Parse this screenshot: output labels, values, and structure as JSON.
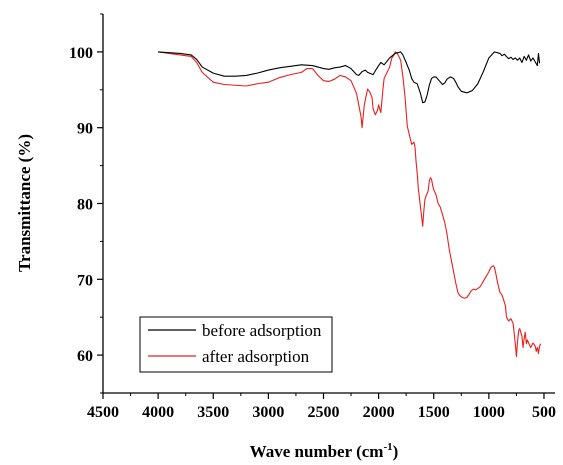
{
  "chart_data": {
    "type": "line",
    "xlabel": "Wave number (cm",
    "xlabel_sup": "-1",
    "xlabel_end": ")",
    "ylabel": "Transmittance (%)",
    "xlim": [
      4500,
      400
    ],
    "ylim": [
      55,
      105
    ],
    "x_ticks": [
      4500,
      4000,
      3500,
      3000,
      2500,
      2000,
      1500,
      1000,
      500
    ],
    "y_ticks": [
      60,
      70,
      80,
      90,
      100
    ],
    "legend_position": "bottom-left",
    "series": [
      {
        "name": "before adsorption",
        "color": "#000000",
        "x": [
          4000,
          3900,
          3800,
          3700,
          3650,
          3600,
          3500,
          3400,
          3300,
          3200,
          3100,
          3000,
          2900,
          2800,
          2700,
          2600,
          2500,
          2450,
          2400,
          2350,
          2300,
          2250,
          2200,
          2180,
          2150,
          2120,
          2100,
          2050,
          2030,
          2000,
          1980,
          1950,
          1900,
          1850,
          1800,
          1780,
          1750,
          1720,
          1700,
          1680,
          1650,
          1620,
          1600,
          1580,
          1560,
          1540,
          1520,
          1500,
          1480,
          1450,
          1420,
          1400,
          1380,
          1350,
          1320,
          1300,
          1280,
          1250,
          1200,
          1150,
          1100,
          1050,
          1000,
          950,
          900,
          880,
          860,
          840,
          820,
          800,
          780,
          760,
          740,
          720,
          700,
          680,
          660,
          640,
          620,
          600,
          580,
          560,
          550,
          540
        ],
        "values": [
          100,
          99.9,
          99.8,
          99.6,
          99.0,
          98.0,
          97.2,
          96.8,
          96.8,
          96.9,
          97.2,
          97.6,
          97.9,
          98.1,
          98.3,
          98.2,
          97.8,
          97.7,
          97.9,
          98.0,
          98.2,
          97.8,
          97.0,
          96.9,
          97.4,
          97.6,
          97.3,
          97.0,
          97.5,
          98.2,
          98.6,
          98.3,
          99.2,
          99.8,
          100,
          99.6,
          98.6,
          97.5,
          96.5,
          96.0,
          95.8,
          94.5,
          93.3,
          93.4,
          94.3,
          95.6,
          96.5,
          96.7,
          96.7,
          96.2,
          95.7,
          95.9,
          96.4,
          96.7,
          96.5,
          96.0,
          95.4,
          94.8,
          94.6,
          94.9,
          95.8,
          97.4,
          99.2,
          100,
          99.8,
          99.5,
          99.7,
          99.4,
          99.1,
          99.3,
          99.0,
          99.2,
          98.9,
          99.2,
          98.6,
          99.4,
          98.9,
          99.6,
          98.8,
          99.2,
          98.7,
          98.2,
          99.8,
          98.5
        ]
      },
      {
        "name": "after adsorption",
        "color": "#e8201e",
        "x": [
          4000,
          3900,
          3800,
          3700,
          3650,
          3600,
          3500,
          3400,
          3300,
          3200,
          3100,
          3000,
          2900,
          2800,
          2700,
          2650,
          2600,
          2550,
          2500,
          2450,
          2400,
          2350,
          2300,
          2250,
          2200,
          2180,
          2160,
          2150,
          2130,
          2100,
          2080,
          2060,
          2050,
          2030,
          2010,
          2000,
          1980,
          1960,
          1950,
          1920,
          1900,
          1880,
          1860,
          1850,
          1830,
          1800,
          1780,
          1760,
          1740,
          1720,
          1700,
          1680,
          1670,
          1660,
          1650,
          1640,
          1620,
          1600,
          1590,
          1580,
          1570,
          1560,
          1550,
          1540,
          1530,
          1520,
          1510,
          1500,
          1480,
          1460,
          1440,
          1420,
          1400,
          1380,
          1360,
          1340,
          1320,
          1300,
          1280,
          1260,
          1240,
          1220,
          1200,
          1180,
          1160,
          1140,
          1120,
          1100,
          1080,
          1060,
          1040,
          1020,
          1000,
          980,
          960,
          950,
          940,
          920,
          900,
          880,
          860,
          850,
          840,
          820,
          800,
          780,
          760,
          750,
          740,
          730,
          720,
          700,
          690,
          680,
          670,
          660,
          650,
          640,
          620,
          600,
          580,
          570,
          560,
          550,
          540,
          530
        ],
        "values": [
          100,
          99.8,
          99.6,
          99.4,
          98.6,
          97.3,
          96.0,
          95.7,
          95.6,
          95.5,
          95.8,
          96.0,
          96.6,
          97.0,
          97.3,
          97.8,
          97.8,
          96.9,
          96.2,
          96.1,
          96.4,
          96.9,
          96.7,
          96.2,
          94.5,
          93.0,
          91.5,
          90.0,
          93.0,
          95.1,
          94.7,
          94.0,
          92.5,
          91.7,
          92.3,
          93.0,
          92.0,
          95.2,
          96.5,
          97.4,
          98.0,
          99.2,
          99.6,
          100,
          99.8,
          98.9,
          96.8,
          94.0,
          90.2,
          89.0,
          87.8,
          88.1,
          87.5,
          85.5,
          84.0,
          82.0,
          79.5,
          77.0,
          79.0,
          80.5,
          81.0,
          81.3,
          81.7,
          83.0,
          83.4,
          83.2,
          82.4,
          81.8,
          81.2,
          80.0,
          79.5,
          78.5,
          77.5,
          76.0,
          74.0,
          72.5,
          71.0,
          69.5,
          68.2,
          67.8,
          67.6,
          67.5,
          67.6,
          68.0,
          68.5,
          68.7,
          68.6,
          68.8,
          69.0,
          69.5,
          70.0,
          70.5,
          71.0,
          71.6,
          71.8,
          71.6,
          71.0,
          69.5,
          68.3,
          67.9,
          67.0,
          66.5,
          65.0,
          64.5,
          64.8,
          64.2,
          61.5,
          59.8,
          61.8,
          63.2,
          63.5,
          62.5,
          61.0,
          62.2,
          63.0,
          61.5,
          62.0,
          61.6,
          61.0,
          61.6,
          61.2,
          60.5,
          61.0,
          60.2,
          61.2,
          61.5
        ]
      }
    ]
  }
}
